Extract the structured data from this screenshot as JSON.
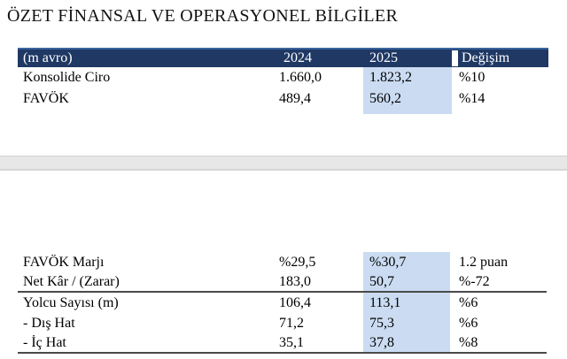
{
  "title": "ÖZET FİNANSAL VE OPERASYONEL BİLGİLER",
  "colors": {
    "header_navy": "#1f3864",
    "header_top_edge": "#3a639c",
    "highlight_blue": "#cbdcf2",
    "divider_gray": "#e7e7e7",
    "rule_dark": "#4a4a4a"
  },
  "top_table": {
    "highlighted_column": "2025",
    "headers": [
      "(m avro)",
      "2024",
      "2025",
      "Değişim"
    ],
    "rows": [
      {
        "cells": [
          "Konsolide Ciro",
          "1.660,0",
          "1.823,2",
          "%10"
        ]
      },
      {
        "cells": [
          "FAVÖK",
          "489,4",
          "560,2",
          "%14"
        ]
      }
    ]
  },
  "bottom_table": {
    "highlighted_column": "2025",
    "rows": [
      {
        "cells": [
          "FAVÖK Marjı",
          "%29,5",
          "%30,7",
          "1.2 puan"
        ]
      },
      {
        "cells": [
          "Net Kâr / (Zarar)",
          "183,0",
          "50,7",
          "%-72"
        ]
      },
      {
        "cells": [
          "Yolcu Sayısı (m)",
          "106,4",
          "113,1",
          "%6"
        ]
      },
      {
        "cells": [
          "- Dış Hat",
          "71,2",
          "75,3",
          "%6"
        ]
      },
      {
        "cells": [
          "- İç Hat",
          "35,1",
          "37,8",
          "%8"
        ]
      }
    ]
  }
}
